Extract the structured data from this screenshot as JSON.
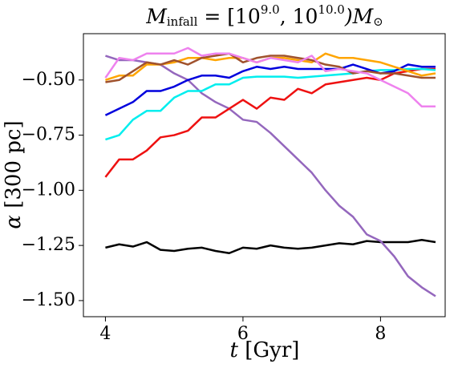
{
  "chart_data": {
    "type": "line",
    "title": [
      "M",
      "infall",
      " = [10",
      "9.0",
      ", 10",
      "10.0",
      ")M",
      "⊙"
    ],
    "xlabel": [
      "t",
      " [Gyr]"
    ],
    "ylabel": [
      "α",
      " [300 pc]"
    ],
    "x": [
      4.0,
      4.2,
      4.4,
      4.6,
      4.8,
      5.0,
      5.2,
      5.4,
      5.6,
      5.8,
      6.0,
      6.2,
      6.4,
      6.6,
      6.8,
      7.0,
      7.2,
      7.4,
      7.6,
      7.8,
      8.0,
      8.2,
      8.4,
      8.6,
      8.8
    ],
    "xlim": [
      3.68,
      8.94
    ],
    "xticks": [
      4,
      6,
      8
    ],
    "ylim": [
      -1.573,
      -0.29
    ],
    "yticks": [
      {
        "value": -0.5,
        "label": "−0.50"
      },
      {
        "value": -0.75,
        "label": "−0.75"
      },
      {
        "value": -1.0,
        "label": "−1.00"
      },
      {
        "value": -1.25,
        "label": "−1.25"
      },
      {
        "value": -1.5,
        "label": "−1.50"
      }
    ],
    "series": [
      {
        "color": "#000000",
        "values": [
          -1.26,
          -1.245,
          -1.255,
          -1.235,
          -1.27,
          -1.275,
          -1.265,
          -1.26,
          -1.275,
          -1.285,
          -1.26,
          -1.265,
          -1.25,
          -1.26,
          -1.265,
          -1.26,
          -1.25,
          -1.24,
          -1.245,
          -1.23,
          -1.235,
          -1.235,
          -1.235,
          -1.225,
          -1.235
        ]
      },
      {
        "color": "#9467bd",
        "values": [
          -0.39,
          -0.41,
          -0.41,
          -0.42,
          -0.43,
          -0.47,
          -0.5,
          -0.56,
          -0.6,
          -0.63,
          -0.68,
          -0.69,
          -0.74,
          -0.8,
          -0.86,
          -0.92,
          -1.0,
          -1.07,
          -1.12,
          -1.2,
          -1.23,
          -1.3,
          -1.39,
          -1.44,
          -1.48
        ]
      },
      {
        "color": "#ee1111",
        "values": [
          -0.94,
          -0.86,
          -0.86,
          -0.82,
          -0.76,
          -0.75,
          -0.73,
          -0.67,
          -0.67,
          -0.63,
          -0.59,
          -0.63,
          -0.58,
          -0.59,
          -0.54,
          -0.56,
          -0.52,
          -0.51,
          -0.5,
          -0.49,
          -0.5,
          -0.47,
          -0.46,
          -0.45,
          -0.45
        ]
      },
      {
        "color": "#00eeee",
        "values": [
          -0.77,
          -0.75,
          -0.68,
          -0.64,
          -0.64,
          -0.58,
          -0.55,
          -0.55,
          -0.52,
          -0.52,
          -0.49,
          -0.485,
          -0.485,
          -0.485,
          -0.49,
          -0.485,
          -0.48,
          -0.475,
          -0.47,
          -0.46,
          -0.455,
          -0.455,
          -0.45,
          -0.45,
          -0.455
        ]
      },
      {
        "color": "#0000dd",
        "values": [
          -0.66,
          -0.63,
          -0.6,
          -0.55,
          -0.55,
          -0.53,
          -0.5,
          -0.48,
          -0.48,
          -0.49,
          -0.46,
          -0.44,
          -0.45,
          -0.44,
          -0.45,
          -0.45,
          -0.45,
          -0.45,
          -0.43,
          -0.45,
          -0.47,
          -0.46,
          -0.43,
          -0.44,
          -0.44
        ]
      },
      {
        "color": "#ffa500",
        "values": [
          -0.5,
          -0.48,
          -0.48,
          -0.43,
          -0.43,
          -0.42,
          -0.4,
          -0.4,
          -0.41,
          -0.4,
          -0.4,
          -0.42,
          -0.4,
          -0.4,
          -0.41,
          -0.42,
          -0.38,
          -0.4,
          -0.4,
          -0.41,
          -0.42,
          -0.44,
          -0.46,
          -0.48,
          -0.47
        ]
      },
      {
        "color": "#a0522d",
        "values": [
          -0.51,
          -0.5,
          -0.46,
          -0.42,
          -0.43,
          -0.41,
          -0.43,
          -0.4,
          -0.39,
          -0.38,
          -0.42,
          -0.4,
          -0.39,
          -0.39,
          -0.4,
          -0.41,
          -0.43,
          -0.44,
          -0.47,
          -0.46,
          -0.47,
          -0.47,
          -0.48,
          -0.49,
          -0.49
        ]
      },
      {
        "color": "#ee82ee",
        "values": [
          -0.49,
          -0.4,
          -0.41,
          -0.38,
          -0.38,
          -0.38,
          -0.355,
          -0.39,
          -0.38,
          -0.38,
          -0.4,
          -0.42,
          -0.4,
          -0.41,
          -0.42,
          -0.39,
          -0.46,
          -0.45,
          -0.46,
          -0.47,
          -0.5,
          -0.53,
          -0.56,
          -0.62,
          -0.62
        ]
      }
    ]
  }
}
